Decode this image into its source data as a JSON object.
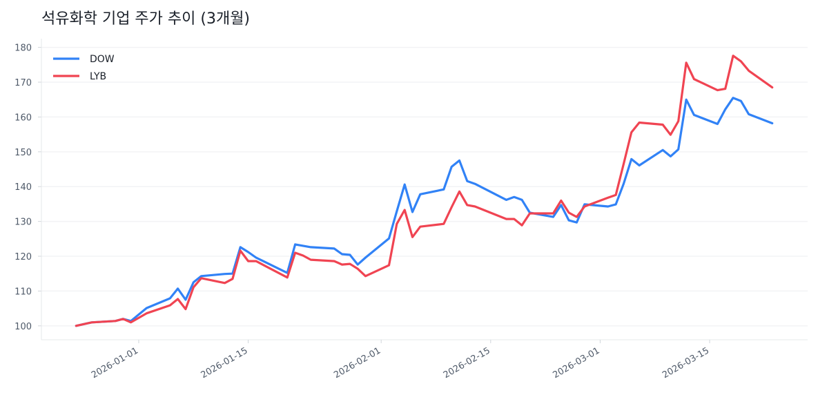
{
  "chart_data": {
    "type": "line",
    "title": "석유화학 기업 주가 추이 (3개월)",
    "xlabel": "",
    "ylabel": "",
    "ylim": [
      96,
      182.5
    ],
    "xlim": [
      "2025-12-20",
      "2026-03-27"
    ],
    "grid": "horizontal",
    "legend_position": "top-left",
    "yticks": [
      100,
      110,
      120,
      130,
      140,
      150,
      160,
      170,
      180
    ],
    "xticks": [
      "2026-01-01",
      "2026-01-15",
      "2026-02-01",
      "2026-02-15",
      "2026-03-01",
      "2026-03-15"
    ],
    "x": [
      "2025-12-24",
      "2025-12-26",
      "2025-12-29",
      "2025-12-30",
      "2025-12-31",
      "2026-01-02",
      "2026-01-05",
      "2026-01-06",
      "2026-01-07",
      "2026-01-08",
      "2026-01-09",
      "2026-01-12",
      "2026-01-13",
      "2026-01-14",
      "2026-01-15",
      "2026-01-16",
      "2026-01-20",
      "2026-01-21",
      "2026-01-22",
      "2026-01-23",
      "2026-01-26",
      "2026-01-27",
      "2026-01-28",
      "2026-01-29",
      "2026-01-30",
      "2026-02-02",
      "2026-02-03",
      "2026-02-04",
      "2026-02-05",
      "2026-02-06",
      "2026-02-09",
      "2026-02-10",
      "2026-02-11",
      "2026-02-12",
      "2026-02-13",
      "2026-02-17",
      "2026-02-18",
      "2026-02-19",
      "2026-02-20",
      "2026-02-23",
      "2026-02-24",
      "2026-02-25",
      "2026-02-26",
      "2026-02-27",
      "2026-03-02",
      "2026-03-03",
      "2026-03-04",
      "2026-03-05",
      "2026-03-06",
      "2026-03-09",
      "2026-03-10",
      "2026-03-11",
      "2026-03-12",
      "2026-03-13",
      "2026-03-16",
      "2026-03-17",
      "2026-03-18",
      "2026-03-19",
      "2026-03-20",
      "2026-03-23"
    ],
    "series": [
      {
        "name": "DOW",
        "color": "#3182f6",
        "values": [
          100.0,
          101.0,
          101.4,
          102.0,
          101.4,
          105.1,
          107.9,
          110.7,
          107.5,
          112.5,
          114.3,
          114.9,
          115.0,
          122.6,
          121.2,
          119.6,
          115.2,
          123.4,
          123.0,
          122.6,
          122.2,
          120.6,
          120.4,
          117.6,
          119.6,
          125.1,
          132.9,
          140.6,
          132.7,
          137.8,
          139.2,
          145.7,
          147.5,
          141.6,
          140.8,
          136.2,
          137.0,
          136.2,
          132.5,
          131.3,
          134.7,
          130.3,
          129.7,
          134.9,
          134.3,
          134.9,
          140.8,
          147.9,
          146.1,
          150.5,
          148.7,
          150.7,
          165.0,
          160.6,
          158.0,
          162.2,
          165.5,
          164.6,
          160.8,
          158.2
        ]
      },
      {
        "name": "LYB",
        "color": "#f04452",
        "values": [
          100.0,
          101.0,
          101.4,
          102.0,
          101.0,
          103.6,
          105.9,
          107.7,
          104.8,
          111.1,
          113.7,
          112.3,
          113.5,
          121.6,
          118.6,
          118.6,
          113.9,
          121.0,
          120.2,
          119.0,
          118.6,
          117.6,
          117.8,
          116.4,
          114.3,
          117.4,
          129.3,
          133.3,
          125.5,
          128.5,
          129.3,
          134.1,
          138.6,
          134.7,
          134.3,
          130.7,
          130.7,
          128.9,
          132.3,
          132.3,
          136.0,
          132.5,
          131.3,
          134.3,
          136.8,
          137.6,
          146.5,
          155.6,
          158.4,
          157.8,
          154.9,
          158.8,
          175.6,
          170.9,
          167.7,
          168.1,
          177.6,
          176.0,
          173.3,
          168.5
        ]
      }
    ]
  }
}
